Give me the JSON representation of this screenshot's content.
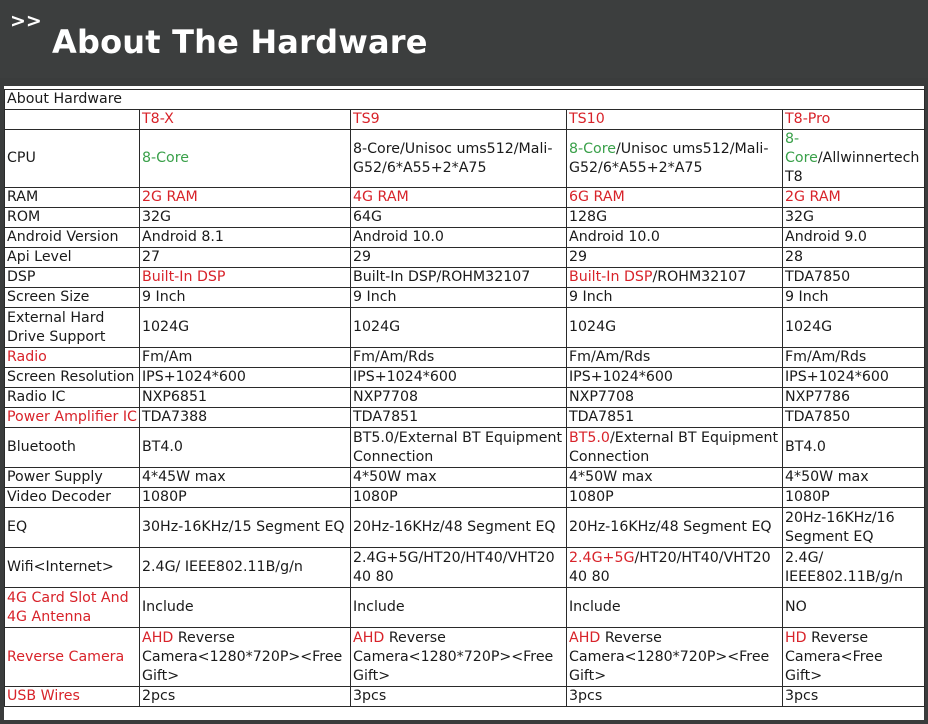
{
  "header": {
    "arrows": ">>",
    "title": "About The Hardware"
  },
  "table": {
    "caption": "About Hardware",
    "products": [
      "T8-X",
      "TS9",
      "TS10",
      "T8-Pro"
    ],
    "rows": [
      {
        "label": "CPU",
        "cells": [
          [
            {
              "t": "8-Core",
              "c": "green"
            }
          ],
          [
            {
              "t": "8-Core/Unisoc ums512/Mali-G52/6*A55+2*A75",
              "c": ""
            }
          ],
          [
            {
              "t": "8-Core",
              "c": "green"
            },
            {
              "t": "/Unisoc ums512/Mali-G52/6*A55+2*A75",
              "c": ""
            }
          ],
          [
            {
              "t": "8-Core",
              "c": "green"
            },
            {
              "t": "/Allwinnertech T8",
              "c": ""
            }
          ]
        ]
      },
      {
        "label": "RAM",
        "cells": [
          [
            {
              "t": "2G RAM",
              "c": "red"
            }
          ],
          [
            {
              "t": "4G RAM",
              "c": "red"
            }
          ],
          [
            {
              "t": "6G RAM",
              "c": "red"
            }
          ],
          [
            {
              "t": "2G RAM",
              "c": "red"
            }
          ]
        ]
      },
      {
        "label": "ROM",
        "cells": [
          [
            {
              "t": "32G",
              "c": ""
            }
          ],
          [
            {
              "t": "64G",
              "c": ""
            }
          ],
          [
            {
              "t": "128G",
              "c": ""
            }
          ],
          [
            {
              "t": "32G",
              "c": ""
            }
          ]
        ]
      },
      {
        "label": "Android Version",
        "cells": [
          [
            {
              "t": "Android 8.1",
              "c": ""
            }
          ],
          [
            {
              "t": "Android 10.0",
              "c": ""
            }
          ],
          [
            {
              "t": "Android 10.0",
              "c": ""
            }
          ],
          [
            {
              "t": "Android 9.0",
              "c": ""
            }
          ]
        ]
      },
      {
        "label": "Api Level",
        "cells": [
          [
            {
              "t": "27",
              "c": ""
            }
          ],
          [
            {
              "t": "29",
              "c": ""
            }
          ],
          [
            {
              "t": "29",
              "c": ""
            }
          ],
          [
            {
              "t": "28",
              "c": ""
            }
          ]
        ]
      },
      {
        "label": "DSP",
        "cells": [
          [
            {
              "t": "Built-In DSP",
              "c": "red"
            }
          ],
          [
            {
              "t": "Built-In DSP/ROHM32107",
              "c": ""
            }
          ],
          [
            {
              "t": "Built-In DSP",
              "c": "red"
            },
            {
              "t": "/ROHM32107",
              "c": ""
            }
          ],
          [
            {
              "t": "TDA7850",
              "c": ""
            }
          ]
        ]
      },
      {
        "label": "Screen Size",
        "cells": [
          [
            {
              "t": "9 Inch",
              "c": ""
            }
          ],
          [
            {
              "t": "9 Inch",
              "c": ""
            }
          ],
          [
            {
              "t": "9 Inch",
              "c": ""
            }
          ],
          [
            {
              "t": "9 Inch",
              "c": ""
            }
          ]
        ]
      },
      {
        "label": "External Hard Drive Support",
        "cells": [
          [
            {
              "t": "1024G",
              "c": ""
            }
          ],
          [
            {
              "t": "1024G",
              "c": ""
            }
          ],
          [
            {
              "t": "1024G",
              "c": ""
            }
          ],
          [
            {
              "t": "1024G",
              "c": ""
            }
          ]
        ]
      },
      {
        "label": "Radio",
        "labelColor": "red",
        "cells": [
          [
            {
              "t": "Fm/Am",
              "c": ""
            }
          ],
          [
            {
              "t": "Fm/Am/Rds",
              "c": ""
            }
          ],
          [
            {
              "t": "Fm/Am/Rds",
              "c": ""
            }
          ],
          [
            {
              "t": "Fm/Am/Rds",
              "c": ""
            }
          ]
        ]
      },
      {
        "label": "Screen Resolution",
        "cells": [
          [
            {
              "t": "IPS+1024*600",
              "c": ""
            }
          ],
          [
            {
              "t": "IPS+1024*600",
              "c": ""
            }
          ],
          [
            {
              "t": "IPS+1024*600",
              "c": ""
            }
          ],
          [
            {
              "t": "IPS+1024*600",
              "c": ""
            }
          ]
        ]
      },
      {
        "label": "Radio IC",
        "cells": [
          [
            {
              "t": "NXP6851",
              "c": ""
            }
          ],
          [
            {
              "t": "NXP7708",
              "c": ""
            }
          ],
          [
            {
              "t": "NXP7708",
              "c": ""
            }
          ],
          [
            {
              "t": "NXP7786",
              "c": ""
            }
          ]
        ]
      },
      {
        "label": "Power Amplifier IC",
        "labelColor": "red",
        "cells": [
          [
            {
              "t": "TDA7388",
              "c": ""
            }
          ],
          [
            {
              "t": "TDA7851",
              "c": ""
            }
          ],
          [
            {
              "t": "TDA7851",
              "c": ""
            }
          ],
          [
            {
              "t": "TDA7850",
              "c": ""
            }
          ]
        ]
      },
      {
        "label": "Bluetooth",
        "cells": [
          [
            {
              "t": "BT4.0",
              "c": ""
            }
          ],
          [
            {
              "t": "BT5.0/External BT Equipment Connection",
              "c": ""
            }
          ],
          [
            {
              "t": "BT5.0",
              "c": "red"
            },
            {
              "t": "/External BT Equipment Connection",
              "c": ""
            }
          ],
          [
            {
              "t": "BT4.0",
              "c": ""
            }
          ]
        ]
      },
      {
        "label": "Power Supply",
        "cells": [
          [
            {
              "t": "4*45W max",
              "c": ""
            }
          ],
          [
            {
              "t": "4*50W max",
              "c": ""
            }
          ],
          [
            {
              "t": "4*50W max",
              "c": ""
            }
          ],
          [
            {
              "t": "4*50W max",
              "c": ""
            }
          ]
        ]
      },
      {
        "label": "Video Decoder",
        "cells": [
          [
            {
              "t": "1080P",
              "c": ""
            }
          ],
          [
            {
              "t": "1080P",
              "c": ""
            }
          ],
          [
            {
              "t": "1080P",
              "c": ""
            }
          ],
          [
            {
              "t": "1080P",
              "c": ""
            }
          ]
        ]
      },
      {
        "label": "EQ",
        "cells": [
          [
            {
              "t": "30Hz-16KHz/15 Segment EQ",
              "c": ""
            }
          ],
          [
            {
              "t": "20Hz-16KHz/48 Segment EQ",
              "c": ""
            }
          ],
          [
            {
              "t": "20Hz-16KHz/48 Segment EQ",
              "c": ""
            }
          ],
          [
            {
              "t": "20Hz-16KHz/16 Segment EQ",
              "c": ""
            }
          ]
        ]
      },
      {
        "label": "Wifi<Internet>",
        "cells": [
          [
            {
              "t": "2.4G/ IEEE802.11B/g/n",
              "c": ""
            }
          ],
          [
            {
              "t": "2.4G+5G/HT20/HT40/VHT20 40 80",
              "c": ""
            }
          ],
          [
            {
              "t": "2.4G+5G",
              "c": "red"
            },
            {
              "t": "/HT20/HT40/VHT20 40 80",
              "c": ""
            }
          ],
          [
            {
              "t": "2.4G/ IEEE802.11B/g/n",
              "c": ""
            }
          ]
        ]
      },
      {
        "label": "4G Card Slot And 4G Antenna",
        "labelColor": "red",
        "cells": [
          [
            {
              "t": "Include",
              "c": ""
            }
          ],
          [
            {
              "t": "Include",
              "c": ""
            }
          ],
          [
            {
              "t": "Include",
              "c": ""
            }
          ],
          [
            {
              "t": "NO",
              "c": ""
            }
          ]
        ]
      },
      {
        "label": "Reverse Camera",
        "labelColor": "red",
        "cells": [
          [
            {
              "t": "AHD",
              "c": "red"
            },
            {
              "t": " Reverse Camera<1280*720P><Free Gift>",
              "c": ""
            }
          ],
          [
            {
              "t": "AHD",
              "c": "red"
            },
            {
              "t": " Reverse Camera<1280*720P><Free Gift>",
              "c": ""
            }
          ],
          [
            {
              "t": "AHD",
              "c": "red"
            },
            {
              "t": " Reverse Camera<1280*720P><Free Gift>",
              "c": ""
            }
          ],
          [
            {
              "t": "HD",
              "c": "red"
            },
            {
              "t": " Reverse Camera<Free Gift>",
              "c": ""
            }
          ]
        ]
      },
      {
        "label": "USB Wires",
        "labelColor": "red",
        "cells": [
          [
            {
              "t": "2pcs",
              "c": ""
            }
          ],
          [
            {
              "t": "3pcs",
              "c": ""
            }
          ],
          [
            {
              "t": "3pcs",
              "c": ""
            }
          ],
          [
            {
              "t": "3pcs",
              "c": ""
            }
          ]
        ]
      }
    ]
  },
  "colors": {
    "header_bg": "#3c3e3e",
    "red": "#d8232a",
    "green": "#3aa04a",
    "text": "#1a1a1a"
  }
}
